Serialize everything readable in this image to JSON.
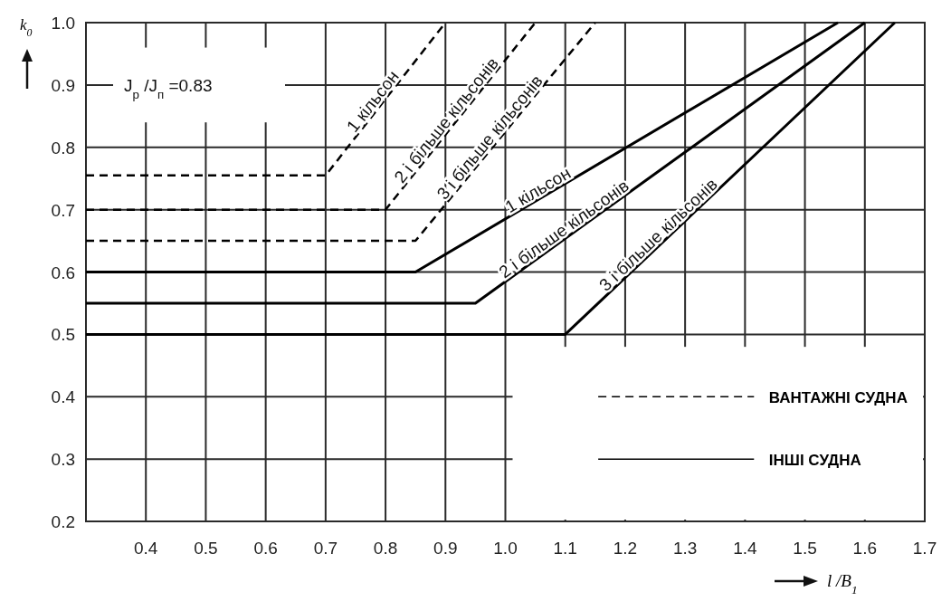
{
  "chart_data": {
    "type": "line",
    "xlabel": "l /B$_{1}$",
    "ylabel": "k$_{0}$",
    "xlim": [
      0.3,
      1.7
    ],
    "xticks": [
      0.4,
      0.5,
      0.6,
      0.7,
      0.8,
      0.9,
      {
        "value": 1,
        "label": "1.0"
      },
      1.1,
      1.2,
      1.3,
      1.4,
      1.5,
      1.6,
      1.7
    ],
    "ylim": [
      0.2,
      1.0
    ],
    "yticks": [
      0.2,
      0.3,
      0.4,
      0.5,
      0.6,
      0.7,
      0.8,
      0.9,
      {
        "value": 1,
        "label": "1.0"
      }
    ],
    "grid": true,
    "marker": "none",
    "annotations": [
      "J$_{р}$ /J$_{п}$ =0.83",
      "ВАНТАЖНІ СУДНА",
      "ІНШІ СУДНА"
    ],
    "series": [
      {
        "name": "1  кільсон",
        "color": "#000000",
        "line_style": "dashed",
        "x": [
          0.3,
          0.7,
          0.9
        ],
        "values": [
          0.755,
          0.755,
          1.0
        ]
      },
      {
        "name": "2 і більше кільсонів",
        "color": "#000000",
        "line_style": "dashed",
        "x": [
          0.3,
          0.8,
          1.05
        ],
        "values": [
          0.7,
          0.7,
          1.0
        ]
      },
      {
        "name": "3 і більше кільсонів",
        "color": "#000000",
        "line_style": "dashed",
        "x": [
          0.3,
          0.85,
          1.15
        ],
        "values": [
          0.65,
          0.65,
          1.0
        ]
      },
      {
        "name": "1  кільсон",
        "color": "#000000",
        "line_style": "solid",
        "x": [
          0.3,
          0.85,
          1.555
        ],
        "values": [
          0.6,
          0.6,
          1.0
        ]
      },
      {
        "name": "2 і більше кільсонів",
        "color": "#000000",
        "line_style": "solid",
        "x": [
          0.3,
          0.95,
          1.6
        ],
        "values": [
          0.55,
          0.55,
          1.0
        ]
      },
      {
        "name": "3 і більше кільсонів",
        "color": "#000000",
        "line_style": "solid",
        "x": [
          0.3,
          1.1,
          1.65
        ],
        "values": [
          0.5,
          0.5,
          1.0
        ]
      }
    ]
  }
}
